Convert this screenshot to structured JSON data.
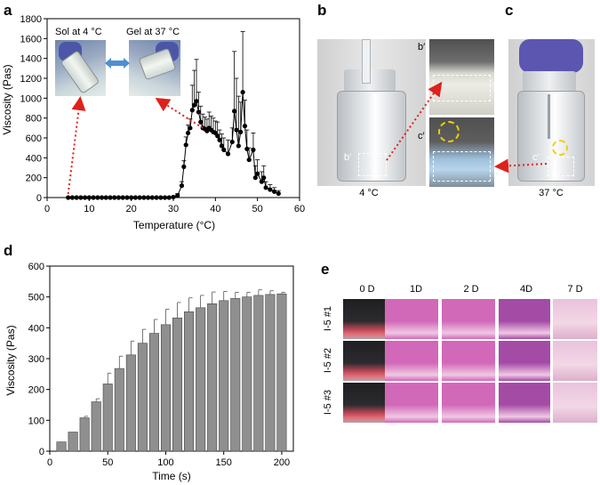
{
  "panels": {
    "a": "a",
    "b": "b",
    "c": "c",
    "d": "d",
    "e": "e"
  },
  "panel_a": {
    "inset_sol": "Sol at 4 °C",
    "inset_gel": "Gel at 37 °C"
  },
  "panel_b": {
    "caption": "4 °C",
    "zoom_label": "b′"
  },
  "panel_bc_zoom": {
    "top_label": "b′",
    "bottom_label": "c′"
  },
  "panel_c": {
    "caption": "37 °C",
    "zoom_label": "c′"
  },
  "panel_e": {
    "columns": [
      "0 D",
      "1D",
      "2 D",
      "4D",
      "7 D"
    ],
    "rows": [
      "I-5 #1",
      "I-5 #2",
      "I-5 #3"
    ],
    "colors": {
      "day0": "#3a2a2c",
      "pink": "#d268b8",
      "purple": "#a44ba6",
      "light": "#e4b8d4"
    }
  },
  "colors": {
    "marker": "#000000",
    "bar_fill": "#8f8f8f",
    "arrow_red": "#e0201a",
    "arrow_blue": "#4f8fd0",
    "yellow_circle": "#f0d000",
    "glove": "#5d56b0"
  },
  "chart_data": [
    {
      "type": "scatter",
      "title": "",
      "xlabel": "Temperature (°C)",
      "ylabel": "Viscosity (Pas)",
      "xlim": [
        0,
        60
      ],
      "ylim": [
        0,
        1800
      ],
      "xticks": [
        0,
        10,
        20,
        30,
        40,
        50,
        60
      ],
      "yticks": [
        0,
        200,
        400,
        600,
        800,
        1000,
        1200,
        1400,
        1600,
        1800
      ],
      "x": [
        5,
        6,
        7,
        8,
        9,
        10,
        11,
        12,
        13,
        14,
        15,
        16,
        17,
        18,
        19,
        20,
        21,
        22,
        23,
        24,
        25,
        26,
        27,
        28,
        29,
        30,
        31,
        32,
        32.5,
        33,
        33.5,
        34,
        34.5,
        35,
        35.5,
        36,
        36.5,
        37,
        37.5,
        38,
        38.5,
        39,
        39.5,
        40,
        40.5,
        41,
        41.5,
        42,
        43,
        44,
        44.5,
        45,
        45.5,
        46,
        46.5,
        47,
        47.5,
        48,
        49,
        49.5,
        50,
        51,
        51.5,
        52,
        53,
        54,
        55
      ],
      "y": [
        0,
        0,
        0,
        0,
        0,
        0,
        0,
        0,
        0,
        0,
        0,
        0,
        0,
        0,
        0,
        0,
        0,
        0,
        0,
        0,
        0,
        0,
        0,
        0,
        0,
        5,
        20,
        120,
        310,
        530,
        650,
        700,
        880,
        930,
        970,
        860,
        760,
        700,
        690,
        670,
        700,
        680,
        660,
        650,
        620,
        580,
        520,
        480,
        440,
        560,
        870,
        680,
        520,
        660,
        1060,
        720,
        490,
        380,
        480,
        200,
        240,
        160,
        200,
        100,
        80,
        60,
        40
      ],
      "error_plus": [
        0,
        0,
        0,
        0,
        0,
        0,
        0,
        0,
        0,
        0,
        0,
        0,
        0,
        0,
        0,
        0,
        0,
        0,
        0,
        0,
        0,
        0,
        0,
        0,
        0,
        5,
        20,
        40,
        60,
        80,
        80,
        90,
        250,
        350,
        420,
        200,
        160,
        140,
        120,
        120,
        160,
        140,
        140,
        120,
        140,
        100,
        120,
        120,
        140,
        140,
        600,
        520,
        500,
        300,
        610,
        260,
        190,
        120,
        170,
        120,
        140,
        100,
        120,
        60,
        50,
        40,
        30
      ]
    },
    {
      "type": "bar",
      "title": "",
      "xlabel": "Time (s)",
      "ylabel": "Viscosity (Pas)",
      "xlim": [
        0,
        210
      ],
      "ylim": [
        0,
        600
      ],
      "xticks": [
        0,
        50,
        100,
        150,
        200
      ],
      "yticks": [
        0,
        100,
        200,
        300,
        400,
        500,
        600
      ],
      "categories": [
        10,
        20,
        30,
        40,
        50,
        60,
        70,
        80,
        90,
        100,
        110,
        120,
        130,
        140,
        150,
        160,
        170,
        180,
        190,
        200
      ],
      "values": [
        30,
        62,
        108,
        160,
        218,
        268,
        312,
        350,
        382,
        410,
        432,
        452,
        465,
        478,
        488,
        495,
        500,
        505,
        508,
        510
      ],
      "error_plus": [
        0,
        0,
        5,
        10,
        35,
        40,
        45,
        45,
        45,
        50,
        50,
        45,
        40,
        38,
        30,
        20,
        15,
        18,
        12,
        5
      ]
    }
  ]
}
